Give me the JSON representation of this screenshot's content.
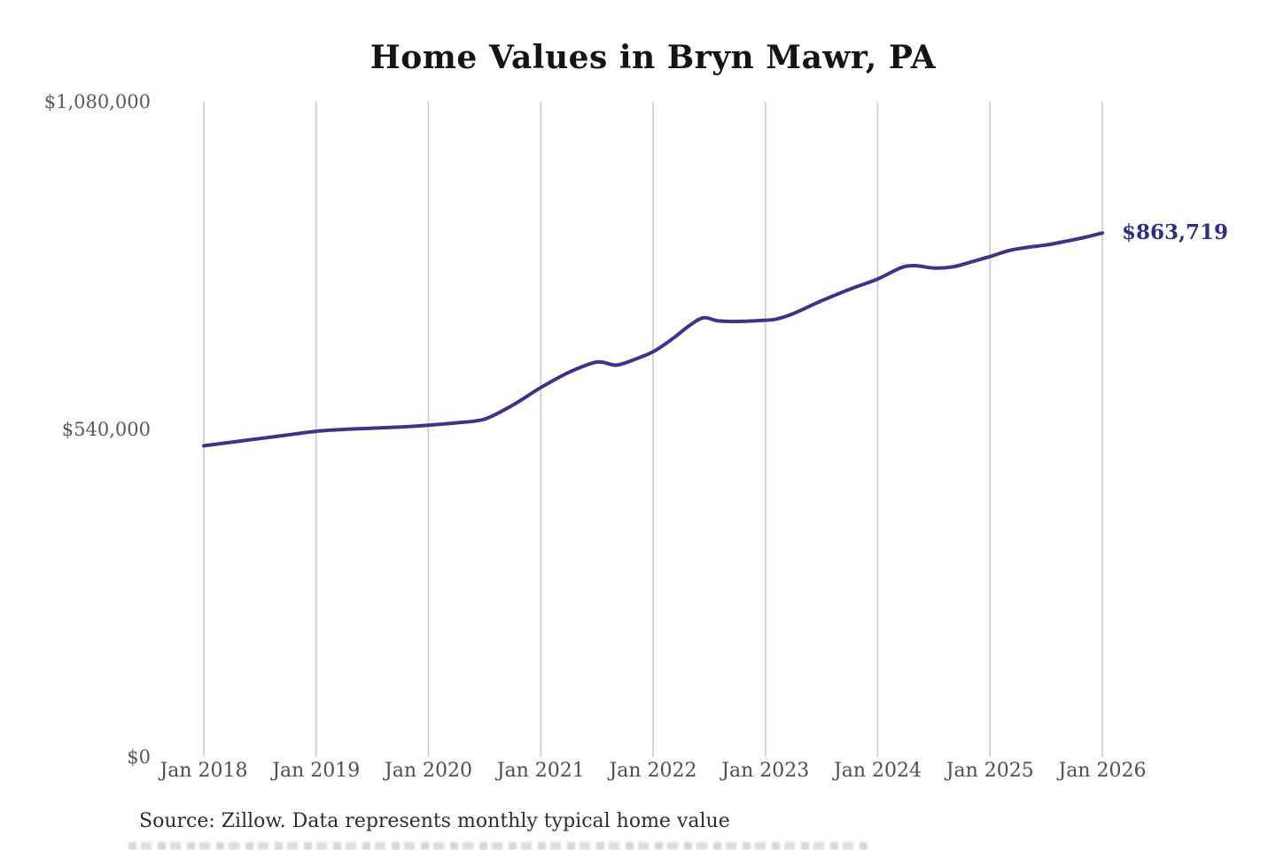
{
  "title": "Home Values in Bryn Mawr, PA",
  "source_note": "Source: Zillow. Data represents monthly typical home value",
  "colors": {
    "line": "#3b3589",
    "end_label": "#312e7f",
    "gridline": "#c9c9c9",
    "y_axis_text": "#595959",
    "x_axis_text": "#4f4f4f",
    "title_text": "#141414",
    "source_text": "#2e2e2e",
    "background": "#ffffff"
  },
  "chart_data": {
    "type": "line",
    "title": "Home Values in Bryn Mawr, PA",
    "xlabel": "",
    "ylabel": "",
    "xlim": [
      2018,
      2026
    ],
    "ylim": [
      0,
      1080000
    ],
    "grid": "vertical-only",
    "legend": "none",
    "x_ticks": [
      {
        "x": 2018,
        "label": "Jan 2018"
      },
      {
        "x": 2019,
        "label": "Jan 2019"
      },
      {
        "x": 2020,
        "label": "Jan 2020"
      },
      {
        "x": 2021,
        "label": "Jan 2021"
      },
      {
        "x": 2022,
        "label": "Jan 2022"
      },
      {
        "x": 2023,
        "label": "Jan 2023"
      },
      {
        "x": 2024,
        "label": "Jan 2024"
      },
      {
        "x": 2025,
        "label": "Jan 2025"
      },
      {
        "x": 2026,
        "label": "Jan 2026"
      }
    ],
    "y_ticks": [
      {
        "value": 1080000,
        "label": "$1,080,000"
      },
      {
        "value": 540000,
        "label": "$540,000"
      },
      {
        "value": 0,
        "label": "$0"
      }
    ],
    "series": [
      {
        "name": "Monthly typical home value",
        "points": [
          [
            2018.0,
            513000
          ],
          [
            2018.25,
            519000
          ],
          [
            2018.5,
            525000
          ],
          [
            2018.75,
            531000
          ],
          [
            2019.0,
            537000
          ],
          [
            2019.25,
            540000
          ],
          [
            2019.5,
            542000
          ],
          [
            2019.75,
            544000
          ],
          [
            2020.0,
            547000
          ],
          [
            2020.25,
            551000
          ],
          [
            2020.5,
            557000
          ],
          [
            2020.75,
            580000
          ],
          [
            2021.0,
            609000
          ],
          [
            2021.25,
            634000
          ],
          [
            2021.5,
            651000
          ],
          [
            2021.67,
            646000
          ],
          [
            2021.83,
            655000
          ],
          [
            2022.0,
            668000
          ],
          [
            2022.17,
            689000
          ],
          [
            2022.33,
            712000
          ],
          [
            2022.45,
            724000
          ],
          [
            2022.58,
            719000
          ],
          [
            2022.75,
            718000
          ],
          [
            2023.0,
            720000
          ],
          [
            2023.1,
            722000
          ],
          [
            2023.25,
            731000
          ],
          [
            2023.5,
            752000
          ],
          [
            2023.75,
            771000
          ],
          [
            2024.0,
            788000
          ],
          [
            2024.2,
            806000
          ],
          [
            2024.33,
            810000
          ],
          [
            2024.5,
            806000
          ],
          [
            2024.67,
            808000
          ],
          [
            2024.83,
            816000
          ],
          [
            2025.0,
            825000
          ],
          [
            2025.17,
            835000
          ],
          [
            2025.33,
            840000
          ],
          [
            2025.5,
            844000
          ],
          [
            2025.67,
            850000
          ],
          [
            2025.83,
            856000
          ],
          [
            2026.0,
            863719
          ]
        ]
      }
    ],
    "final_value": 863719,
    "final_value_label": "$863,719"
  }
}
